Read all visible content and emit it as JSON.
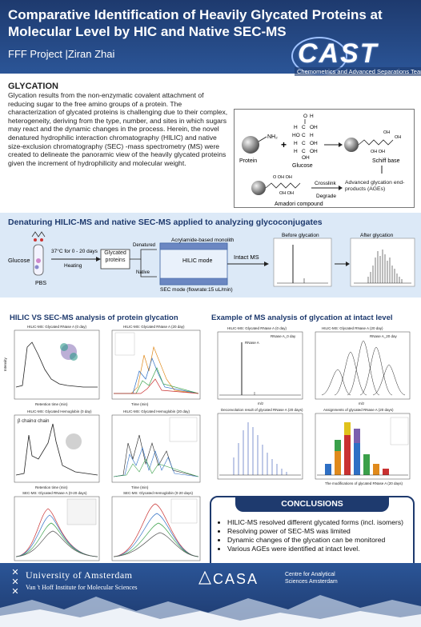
{
  "header": {
    "title": "Comparative Identification of Heavily Glycated Proteins at Molecular Level by HIC and Native SEC-MS",
    "subtitle": "FFF Project  |Ziran Zhai",
    "logo_text": "CAST",
    "logo_subtitle": "Chemometrics and Advanced Separations Team"
  },
  "glycation": {
    "heading": "GLYCATION",
    "text": "Glycation results from the non-enzymatic covalent attachment of reducing sugar to the free amino groups of a protein. The characterization of glycated proteins is challenging due to their complex, heterogeneity, deriving from the type, number, and sites in which sugars may react and the dynamic changes in the process. Herein, the novel denatured hydrophilic interaction chromatography (HILIC) and native size-exclusion chromatography (SEC) -mass spectrometry (MS) were created to delineate the panoramic view of the heavily glycated proteins given the increment of hydrophilicity and molecular weight."
  },
  "reaction": {
    "protein": "Protein",
    "glucose": "Glucose",
    "schiff": "Schiff base",
    "amadori": "Amadori compound",
    "crosslink": "Crosslink",
    "degrade": "Degrade",
    "ages": "Advanced glycation end-products (AGEs)",
    "nh2": "NH₂"
  },
  "workflow": {
    "heading": "Denaturing HILIC-MS and native SEC-MS applied to analyzing glycoconjugates",
    "glucose": "Glucose",
    "pbs": "PBS",
    "condition": "37°C for 0 - 20 days",
    "heating": "Heating",
    "glycated": "Glycated proteins",
    "denatured": "Denatured",
    "native": "Native",
    "acrylamide": "Acrylamide-based monolith",
    "hilic_mode": "HILIC mode",
    "sec_mode": "SEC mode (flowrate:15 uL/min)",
    "intact_ms": "Intact MS",
    "before": "Before glycation",
    "after": "After glycation"
  },
  "hic_section": {
    "heading": "HILIC VS SEC-MS analysis of protein glycation",
    "p1_title": "HILIC-MS: Glycated RNase A (0 day)",
    "p2_title": "HILIC-MS: Glycated RNase A (20 day)",
    "p3_title": "HILIC-MS: Glycated Hemoglobin (0 day)",
    "p4_title": "HILIC-MS: Glycated Hemoglobin (20 day)",
    "p5_title": "SEC-MS: Glycated RNase A (0-20 days)",
    "p6_title": "SEC-MS: Glycated Hemoglobin (0-20 days)",
    "beta_chain": "β chain",
    "alpha_chain": "α chain",
    "xlabel": "Retention time (min)",
    "xlabel_time": "Time (min)",
    "ylabel": "Intensity"
  },
  "ms_section": {
    "heading": "Example of MS analysis of glycation at intact level",
    "p1_title": "HILIC-MS: Glycated RNase A (0 day)",
    "p2_title": "HILIC-MS: Glycated RNase A (20 day)",
    "p3_title": "Deconvolution result of glycated RNase A (20 days)",
    "p4_title": "Assignments of glycated RNase A (20 days)",
    "p4_xlabel": "The modifications of glycated RNase A (20 days)",
    "rnase": "RNase A",
    "rnase_legend": "RNase A_0 day",
    "rnase_legend20": "RNase A_20 day",
    "mz": "m/z",
    "ylabel": "Intensity"
  },
  "conclusions": {
    "heading": "CONCLUSIONS",
    "items": [
      "HILIC-MS resolved different glycated forms (incl. isomers)",
      "Resolving power of SEC-MS was limited",
      "Dynamic changes of the glycation can be monitored",
      "Various AGEs were identified at intact level."
    ]
  },
  "footer": {
    "uva_line1": "University of Amsterdam",
    "uva_line2": "Van 't Hoff Institute for Molecular Sciences",
    "casa": "CASA",
    "casa_sub": "Centre for Analytical Sciences Amsterdam"
  },
  "colors": {
    "primary": "#1e3a6e",
    "band": "#dce9f7",
    "accent": "#2b5597"
  }
}
